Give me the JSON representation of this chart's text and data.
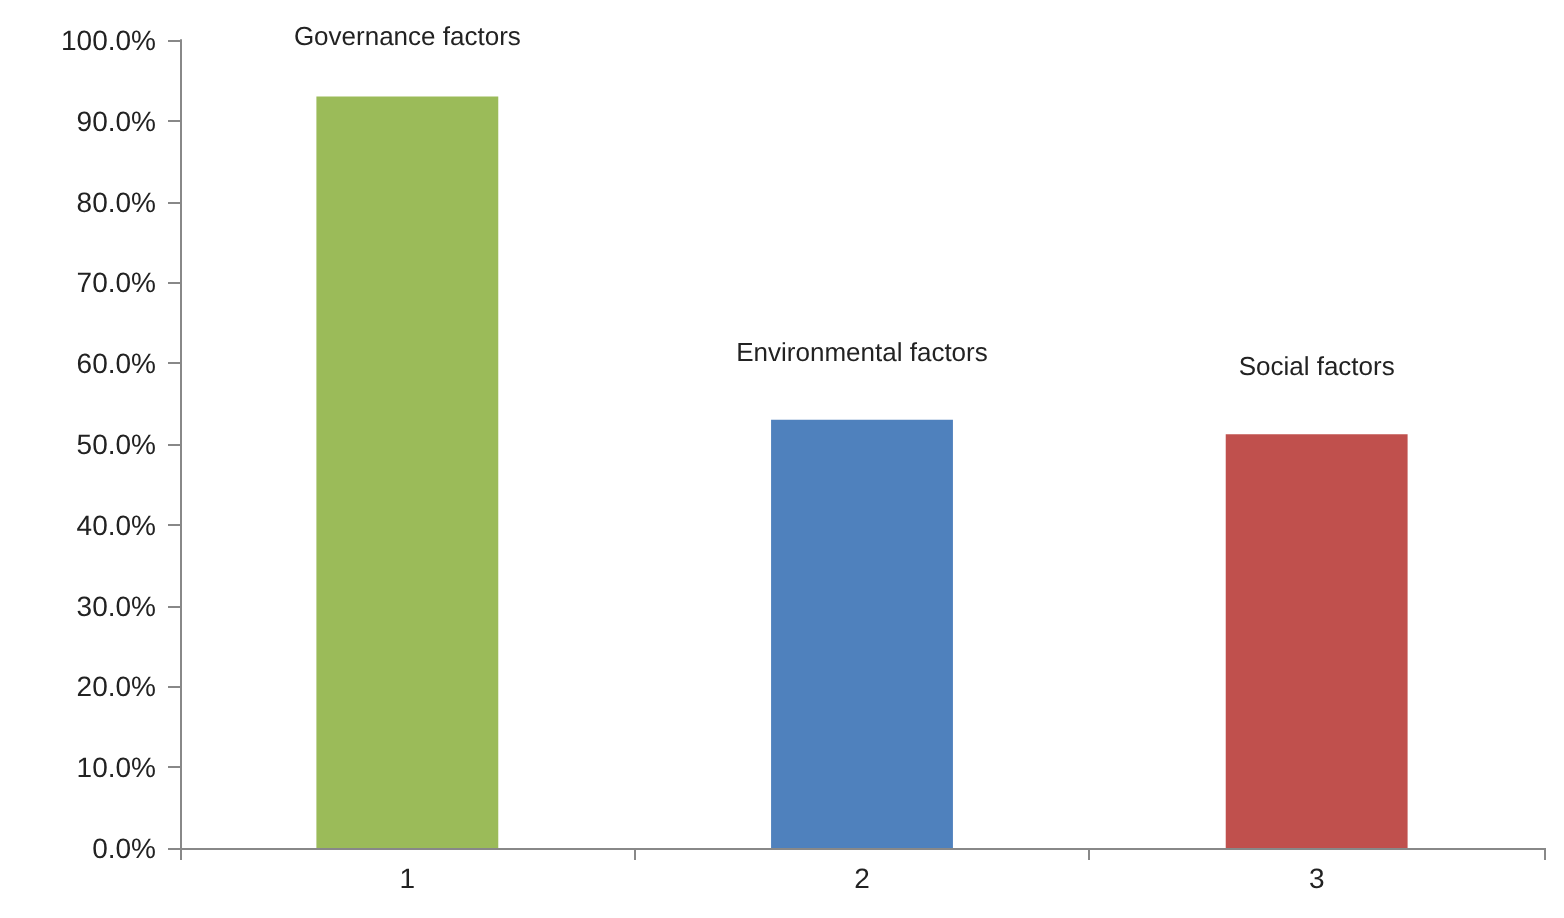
{
  "chart_data": {
    "type": "bar",
    "categories": [
      "1",
      "2",
      "3"
    ],
    "values": [
      93,
      53,
      51.2
    ],
    "colors": [
      "#9bbb59",
      "#4f81bd",
      "#c0504d"
    ],
    "ylim": [
      0,
      100
    ],
    "yticks": [
      {
        "value": 0,
        "label": "0.0%"
      },
      {
        "value": 10,
        "label": "10.0%"
      },
      {
        "value": 20,
        "label": "20.0%"
      },
      {
        "value": 30,
        "label": "30.0%"
      },
      {
        "value": 40,
        "label": "40.0%"
      },
      {
        "value": 50,
        "label": "50.0%"
      },
      {
        "value": 60,
        "label": "60.0%"
      },
      {
        "value": 70,
        "label": "70.0%"
      },
      {
        "value": 80,
        "label": "80.0%"
      },
      {
        "value": 90,
        "label": "90.0%"
      },
      {
        "value": 100,
        "label": "100.0%"
      }
    ],
    "grid": false,
    "annotations": [
      "Governance factors",
      "Environmental factors",
      "Social factors"
    ]
  }
}
